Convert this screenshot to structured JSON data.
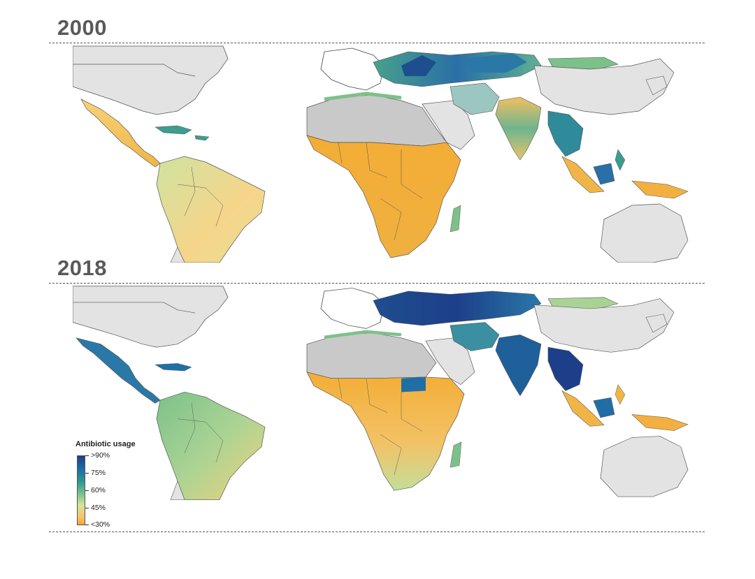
{
  "panels": [
    {
      "year": "2000"
    },
    {
      "year": "2018"
    }
  ],
  "legend": {
    "title": "Antibiotic usage",
    "ticks": [
      ">90%",
      "75%",
      "60%",
      "45%",
      "<30%"
    ]
  },
  "colors": {
    "high": "#1d3f8a",
    "mid_high": "#1f6fa6",
    "mid": "#2a9a93",
    "mid_low": "#7cc18a",
    "low_mid": "#d7e39a",
    "low": "#f3a830",
    "no_data": "#e3e3e3",
    "no_data_desert": "#c9c9c9",
    "border": "#333333"
  }
}
